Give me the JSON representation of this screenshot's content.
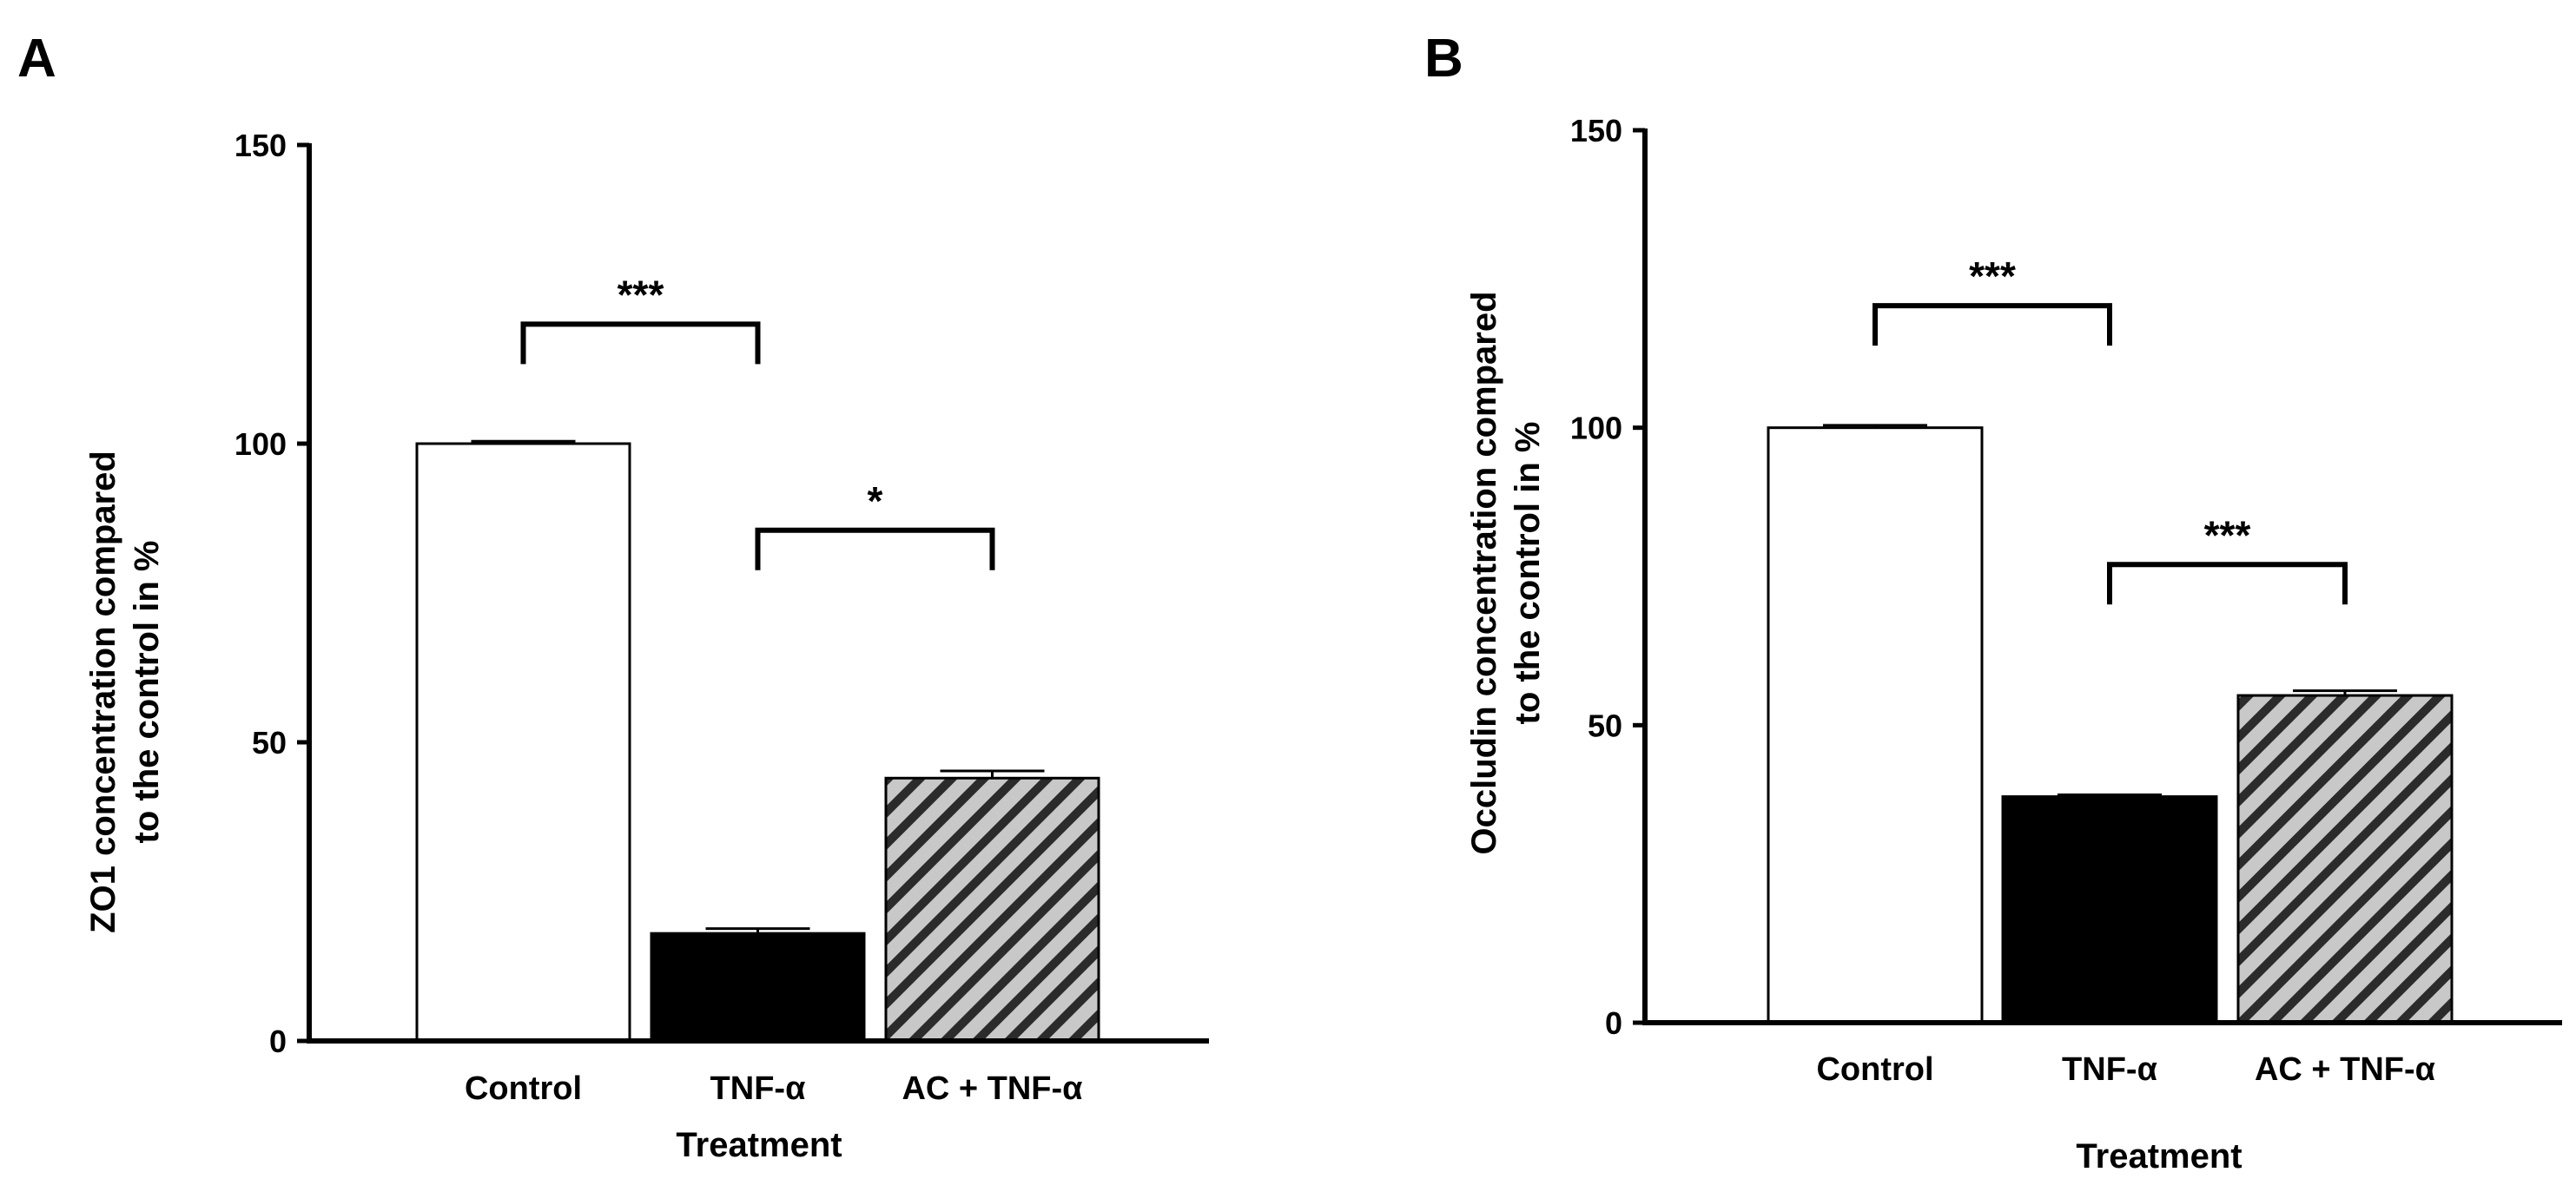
{
  "chart_data": [
    {
      "panel": "A",
      "type": "bar",
      "xlabel": "Treatment",
      "ylabel_lines": [
        "ZO1 concentration compared",
        "to the control in %"
      ],
      "ylim": [
        0,
        150
      ],
      "yticks": [
        0,
        50,
        100,
        150
      ],
      "categories": [
        "Control",
        "TNF-α",
        "AC + TNF-α"
      ],
      "values": [
        100,
        18,
        44
      ],
      "errors": [
        0.4,
        0.8,
        1.2
      ],
      "bar_styles": [
        "white",
        "black",
        "hatched"
      ],
      "significance": [
        {
          "from": 0,
          "to": 1,
          "label": "***",
          "y": 120
        },
        {
          "from": 1,
          "to": 2,
          "label": "*",
          "y": 85.5
        }
      ]
    },
    {
      "panel": "B",
      "type": "bar",
      "xlabel": "Treatment",
      "ylabel_lines": [
        "Occludin concentration compared",
        "to the control in %"
      ],
      "ylim": [
        0,
        150
      ],
      "yticks": [
        0,
        50,
        100,
        150
      ],
      "categories": [
        "Control",
        "TNF-α",
        "AC + TNF-α"
      ],
      "values": [
        100,
        38,
        55
      ],
      "errors": [
        0.4,
        0.3,
        0.8
      ],
      "bar_styles": [
        "white",
        "black",
        "hatched"
      ],
      "significance": [
        {
          "from": 0,
          "to": 1,
          "label": "***",
          "y": 120.5
        },
        {
          "from": 1,
          "to": 2,
          "label": "***",
          "y": 77
        }
      ]
    }
  ],
  "colors": {
    "ink": "#000000",
    "bar_white": "#ffffff",
    "bar_black": "#000000",
    "hatch_bg": "#c8c8c8",
    "hatch_line": "#2b2b2b"
  }
}
